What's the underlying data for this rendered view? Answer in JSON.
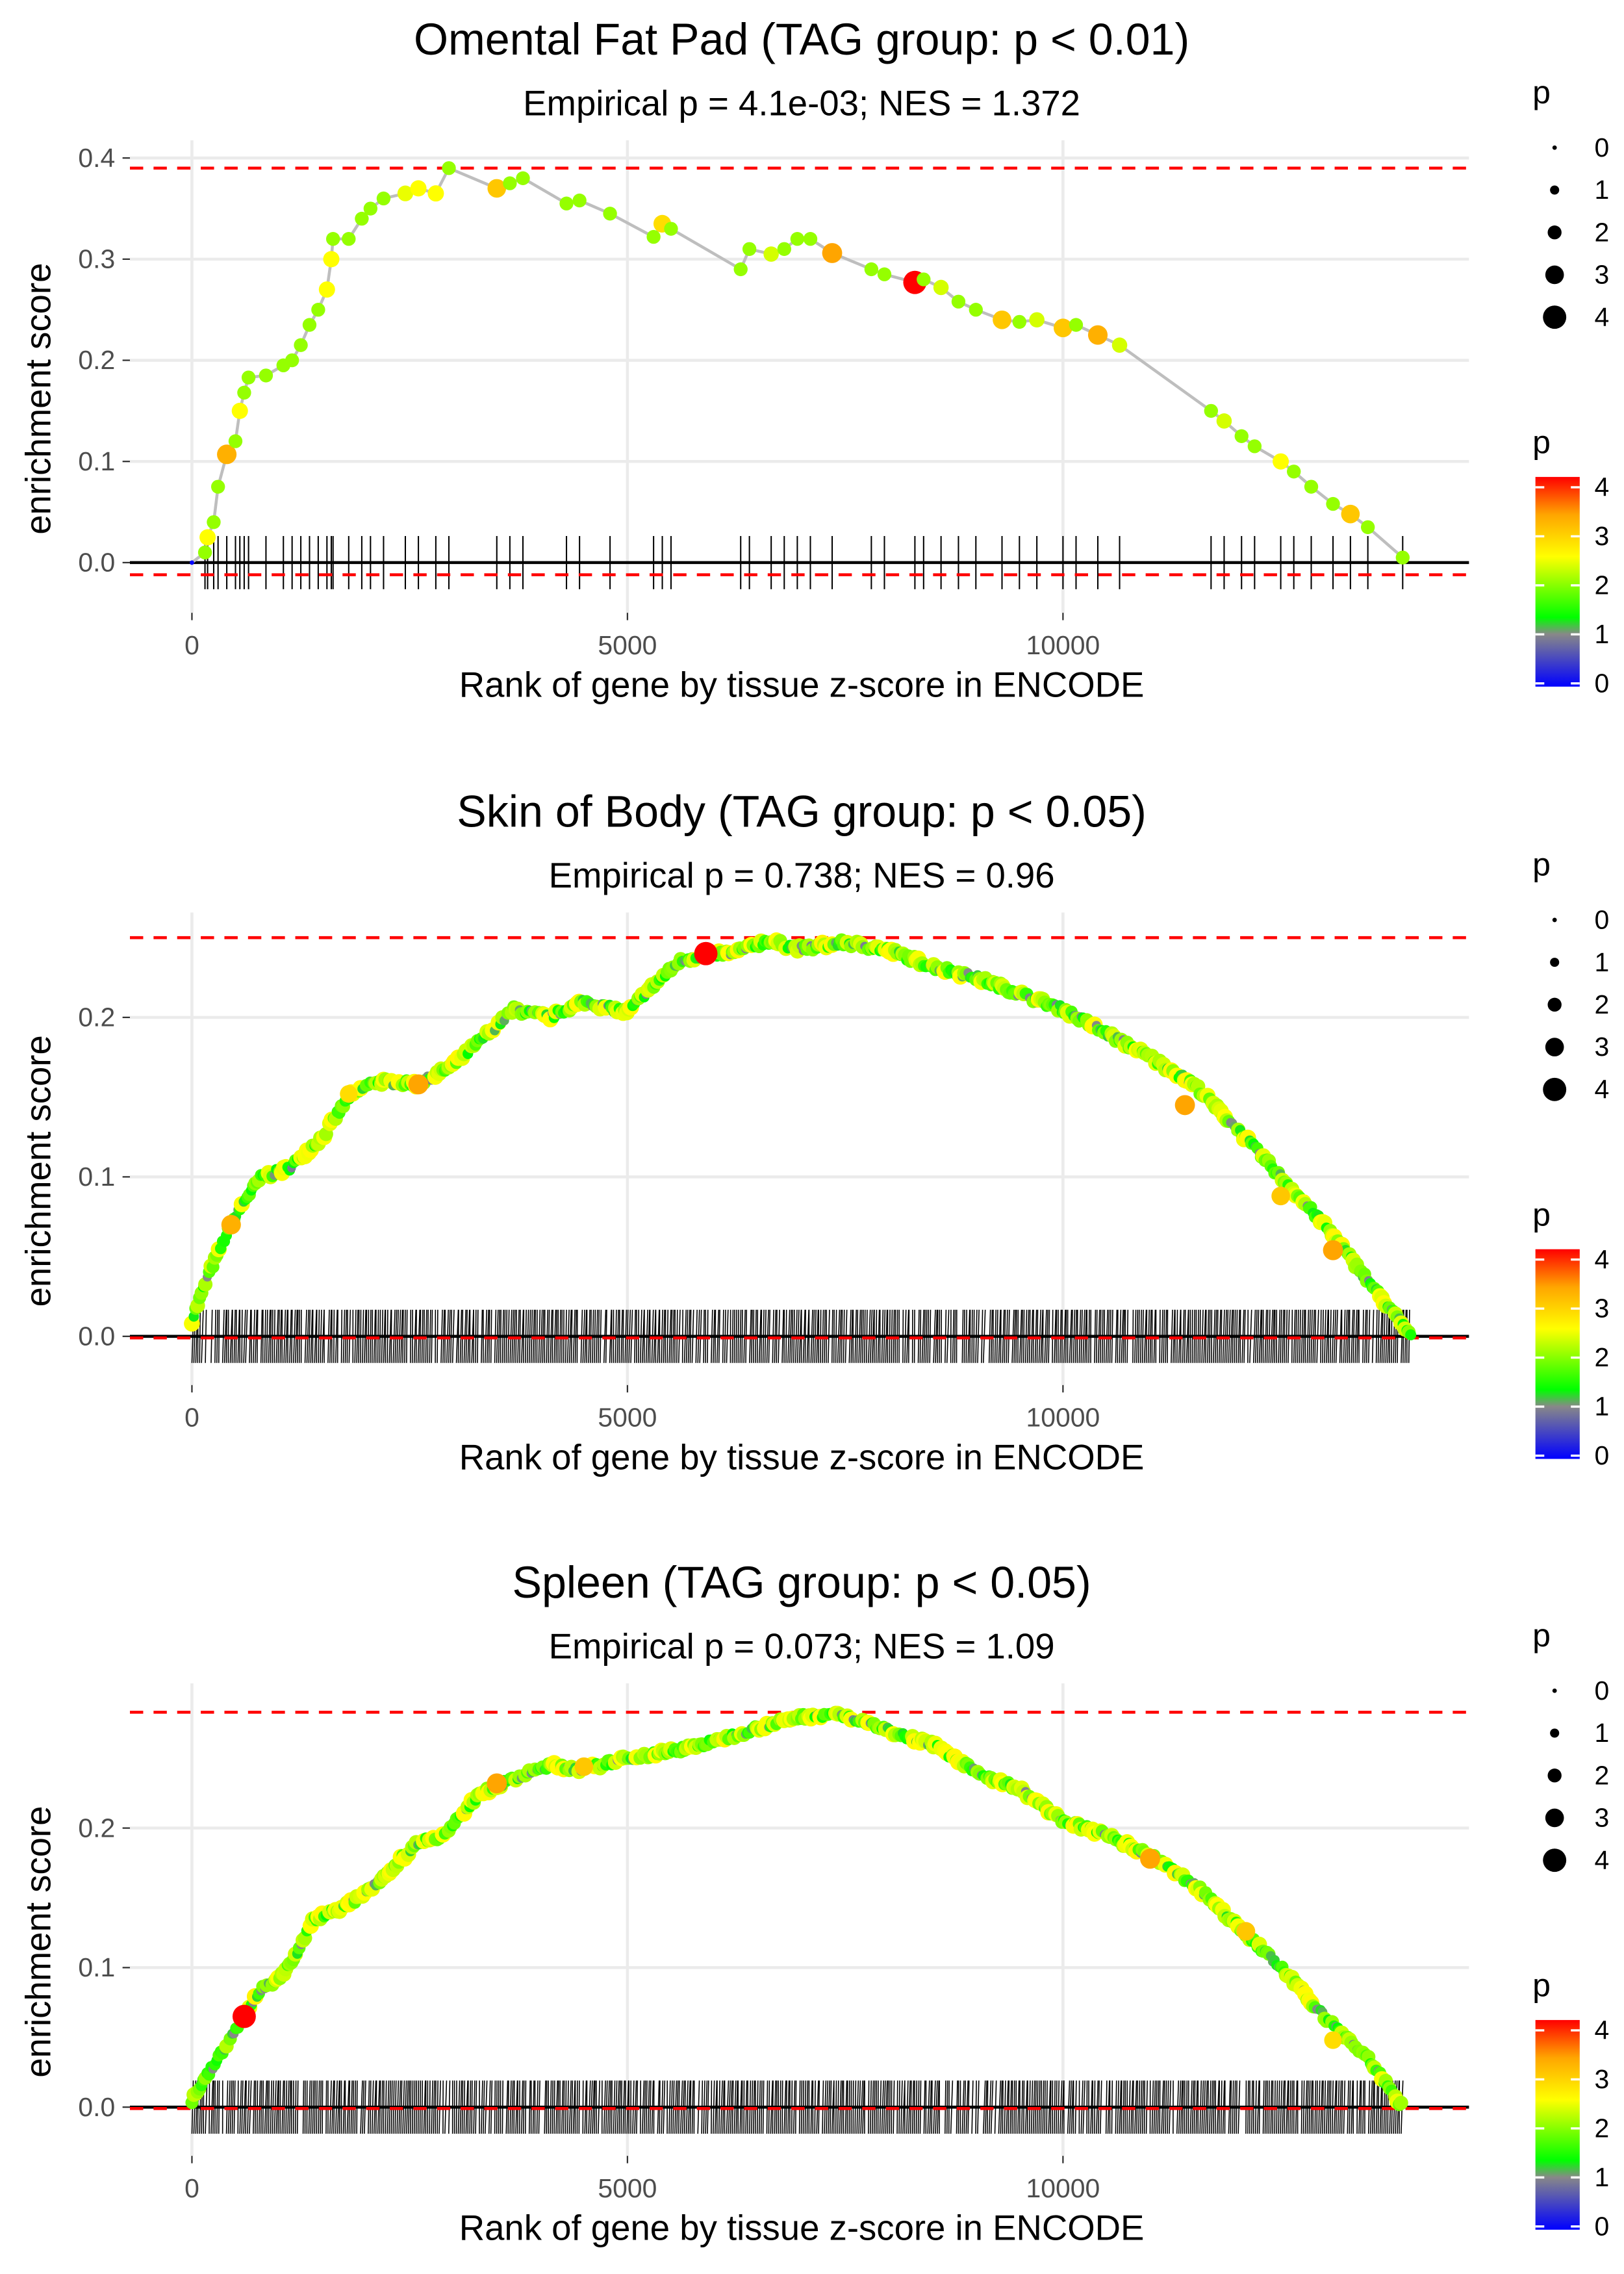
{
  "chart_data": [
    {
      "type": "scatter",
      "title": "Omental Fat Pad (TAG group: p < 0.01)",
      "subtitle": "Empirical p = 4.1e-03; NES = 1.372",
      "xlabel": "Rank of gene by tissue z-score in ENCODE",
      "ylabel": "enrichment score",
      "xticks": [
        0,
        5000,
        10000
      ],
      "yticks": [
        "0.0",
        "0.1",
        "0.2",
        "0.3",
        "0.4"
      ],
      "ylim": [
        -0.02,
        0.41
      ],
      "xlim": [
        -700,
        14700
      ],
      "dashed_lines": [
        0.39,
        -0.012
      ],
      "dense": false,
      "points": [
        [
          0,
          0,
          0
        ],
        [
          150,
          0.01,
          2
        ],
        [
          180,
          0.025,
          2.5
        ],
        [
          250,
          0.04,
          2
        ],
        [
          300,
          0.075,
          2
        ],
        [
          400,
          0.107,
          3.2
        ],
        [
          500,
          0.12,
          2
        ],
        [
          550,
          0.15,
          2.5
        ],
        [
          600,
          0.168,
          2
        ],
        [
          650,
          0.183,
          2
        ],
        [
          850,
          0.185,
          2
        ],
        [
          1050,
          0.195,
          2
        ],
        [
          1150,
          0.2,
          2
        ],
        [
          1250,
          0.215,
          2
        ],
        [
          1350,
          0.235,
          2
        ],
        [
          1450,
          0.25,
          2
        ],
        [
          1550,
          0.27,
          2.5
        ],
        [
          1600,
          0.3,
          2.5
        ],
        [
          1620,
          0.32,
          2
        ],
        [
          1800,
          0.32,
          2
        ],
        [
          1950,
          0.34,
          2
        ],
        [
          2050,
          0.35,
          2
        ],
        [
          2200,
          0.36,
          2
        ],
        [
          2450,
          0.365,
          2.4
        ],
        [
          2600,
          0.37,
          2.5
        ],
        [
          2800,
          0.365,
          2.5
        ],
        [
          2950,
          0.39,
          2
        ],
        [
          3500,
          0.37,
          3
        ],
        [
          3650,
          0.375,
          2
        ],
        [
          3800,
          0.38,
          2
        ],
        [
          4300,
          0.355,
          2
        ],
        [
          4450,
          0.358,
          2
        ],
        [
          4800,
          0.345,
          2
        ],
        [
          5300,
          0.322,
          2
        ],
        [
          5400,
          0.335,
          2.8
        ],
        [
          5500,
          0.33,
          2
        ],
        [
          6300,
          0.29,
          2
        ],
        [
          6400,
          0.31,
          2
        ],
        [
          6650,
          0.305,
          2.3
        ],
        [
          6800,
          0.31,
          2
        ],
        [
          6950,
          0.32,
          2
        ],
        [
          7100,
          0.32,
          2
        ],
        [
          7350,
          0.306,
          3.3
        ],
        [
          7800,
          0.29,
          2
        ],
        [
          7950,
          0.285,
          2
        ],
        [
          8300,
          0.277,
          4
        ],
        [
          8400,
          0.28,
          2
        ],
        [
          8600,
          0.272,
          2.3
        ],
        [
          8800,
          0.258,
          2
        ],
        [
          9000,
          0.25,
          2
        ],
        [
          9300,
          0.24,
          3
        ],
        [
          9500,
          0.238,
          2
        ],
        [
          9700,
          0.24,
          2.3
        ],
        [
          10000,
          0.232,
          3
        ],
        [
          10150,
          0.235,
          2
        ],
        [
          10400,
          0.225,
          3.2
        ],
        [
          10650,
          0.215,
          2.3
        ],
        [
          11700,
          0.15,
          2
        ],
        [
          11850,
          0.14,
          2.3
        ],
        [
          12050,
          0.125,
          2
        ],
        [
          12200,
          0.115,
          2
        ],
        [
          12500,
          0.1,
          2.5
        ],
        [
          12650,
          0.09,
          2
        ],
        [
          12850,
          0.075,
          2
        ],
        [
          13100,
          0.058,
          2
        ],
        [
          13300,
          0.048,
          3
        ],
        [
          13500,
          0.035,
          2
        ],
        [
          13900,
          0.005,
          2
        ]
      ]
    },
    {
      "type": "scatter",
      "title": "Skin of Body (TAG group: p < 0.05)",
      "subtitle": "Empirical p = 0.738; NES = 0.96",
      "xlabel": "Rank of gene by tissue z-score in ENCODE",
      "ylabel": "enrichment score",
      "xticks": [
        0,
        5000,
        10000
      ],
      "yticks": [
        "0.0",
        "0.1",
        "0.2"
      ],
      "ylim": [
        -0.005,
        0.265
      ],
      "xlim": [
        -700,
        14700
      ],
      "dashed_lines": [
        0.25,
        -0.001
      ],
      "dense": true,
      "curve": [
        [
          0,
          0.01
        ],
        [
          200,
          0.04
        ],
        [
          450,
          0.07
        ],
        [
          600,
          0.085
        ],
        [
          800,
          0.1
        ],
        [
          1100,
          0.105
        ],
        [
          1500,
          0.125
        ],
        [
          1800,
          0.15
        ],
        [
          2100,
          0.16
        ],
        [
          2600,
          0.158
        ],
        [
          3000,
          0.17
        ],
        [
          3400,
          0.19
        ],
        [
          3700,
          0.205
        ],
        [
          4100,
          0.2
        ],
        [
          4500,
          0.21
        ],
        [
          5000,
          0.203
        ],
        [
          5200,
          0.215
        ],
        [
          5600,
          0.235
        ],
        [
          5900,
          0.24
        ],
        [
          6200,
          0.24
        ],
        [
          6600,
          0.248
        ],
        [
          7000,
          0.243
        ],
        [
          7500,
          0.247
        ],
        [
          8000,
          0.242
        ],
        [
          8500,
          0.232
        ],
        [
          9000,
          0.225
        ],
        [
          9500,
          0.215
        ],
        [
          10000,
          0.205
        ],
        [
          10500,
          0.19
        ],
        [
          11000,
          0.175
        ],
        [
          11500,
          0.158
        ],
        [
          12000,
          0.13
        ],
        [
          12500,
          0.1
        ],
        [
          13000,
          0.07
        ],
        [
          13500,
          0.035
        ],
        [
          14000,
          0.0
        ]
      ],
      "highlights": [
        [
          450,
          0.07,
          3.2
        ],
        [
          1800,
          0.152,
          2.8
        ],
        [
          2600,
          0.158,
          3.3
        ],
        [
          5900,
          0.24,
          4
        ],
        [
          11400,
          0.145,
          3.3
        ],
        [
          12500,
          0.088,
          3
        ],
        [
          13100,
          0.054,
          3.3
        ]
      ]
    },
    {
      "type": "scatter",
      "title": "Spleen (TAG group: p < 0.05)",
      "subtitle": "Empirical p = 0.073; NES = 1.09",
      "xlabel": "Rank of gene by tissue z-score in ENCODE",
      "ylabel": "enrichment score",
      "xticks": [
        0,
        5000,
        10000
      ],
      "yticks": [
        "0.0",
        "0.1",
        "0.2"
      ],
      "ylim": [
        -0.005,
        0.3
      ],
      "xlim": [
        -700,
        14700
      ],
      "dashed_lines": [
        0.283,
        -0.001
      ],
      "dense": true,
      "curve": [
        [
          0,
          0.005
        ],
        [
          200,
          0.025
        ],
        [
          600,
          0.065
        ],
        [
          800,
          0.085
        ],
        [
          1000,
          0.092
        ],
        [
          1200,
          0.11
        ],
        [
          1400,
          0.135
        ],
        [
          1800,
          0.145
        ],
        [
          2200,
          0.165
        ],
        [
          2600,
          0.19
        ],
        [
          2900,
          0.195
        ],
        [
          3300,
          0.225
        ],
        [
          3700,
          0.235
        ],
        [
          4100,
          0.245
        ],
        [
          4500,
          0.242
        ],
        [
          5000,
          0.25
        ],
        [
          5500,
          0.255
        ],
        [
          6000,
          0.262
        ],
        [
          6500,
          0.272
        ],
        [
          7000,
          0.28
        ],
        [
          7400,
          0.282
        ],
        [
          8000,
          0.27
        ],
        [
          8500,
          0.26
        ],
        [
          9000,
          0.24
        ],
        [
          9500,
          0.228
        ],
        [
          10000,
          0.205
        ],
        [
          10500,
          0.195
        ],
        [
          11000,
          0.18
        ],
        [
          11500,
          0.16
        ],
        [
          12000,
          0.13
        ],
        [
          12500,
          0.1
        ],
        [
          13000,
          0.065
        ],
        [
          13500,
          0.035
        ],
        [
          13900,
          0.0
        ]
      ],
      "highlights": [
        [
          600,
          0.065,
          4
        ],
        [
          3500,
          0.232,
          3.3
        ],
        [
          4500,
          0.244,
          3
        ],
        [
          11000,
          0.178,
          3.3
        ],
        [
          12100,
          0.126,
          3
        ],
        [
          13100,
          0.048,
          2.8
        ]
      ]
    }
  ],
  "legend": {
    "size_title": "p",
    "size_levels": [
      "0",
      "1",
      "2",
      "3",
      "4"
    ],
    "color_title": "p",
    "color_levels": [
      "4",
      "3",
      "2",
      "1",
      "0"
    ],
    "colors": [
      "#0000ff",
      "#888888",
      "#00ff00",
      "#ffff00",
      "#ffa500",
      "#ff0000"
    ]
  }
}
